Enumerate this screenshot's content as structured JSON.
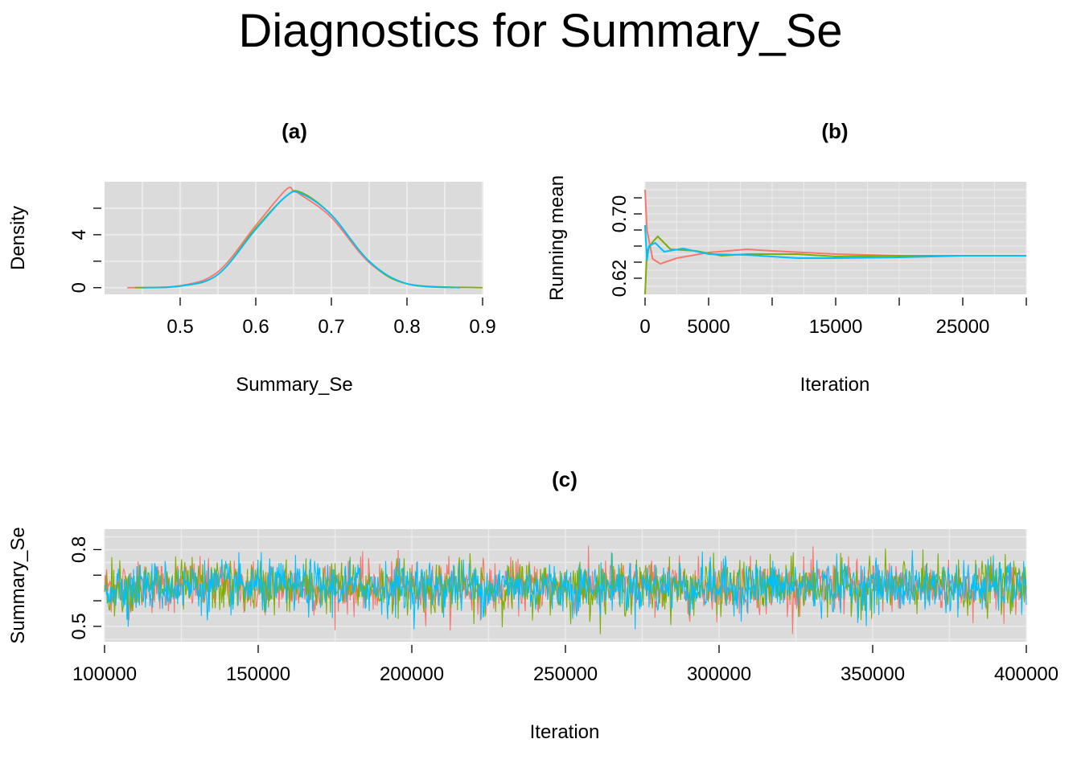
{
  "title": "Diagnostics for Summary_Se",
  "colors": {
    "chain1": "#F8766D",
    "chain2": "#7CAE00",
    "chain3": "#00BFFF",
    "panel_bg": "#DBDBDB",
    "grid": "#EBEBEB"
  },
  "panels": {
    "a": {
      "title": "(a)",
      "xlabel": "Summary_Se",
      "ylabel": "Density",
      "xticks": [
        "0.5",
        "0.6",
        "0.7",
        "0.8",
        "0.9"
      ],
      "yticks": [
        "0",
        "4"
      ]
    },
    "b": {
      "title": "(b)",
      "xlabel": "Iteration",
      "ylabel": "Running mean",
      "xticks": [
        "0",
        "5000",
        "15000",
        "25000"
      ],
      "yticks": [
        "0.62",
        "0.70"
      ]
    },
    "c": {
      "title": "(c)",
      "xlabel": "Iteration",
      "ylabel": "Summary_Se",
      "xticks": [
        "100000",
        "150000",
        "200000",
        "250000",
        "300000",
        "350000",
        "400000"
      ],
      "yticks": [
        "0.5",
        "0.8"
      ]
    }
  },
  "chart_data": [
    {
      "type": "line",
      "panel": "a",
      "title": "(a)",
      "xlabel": "Summary_Se",
      "ylabel": "Density",
      "xlim": [
        0.4,
        0.9
      ],
      "ylim": [
        -0.5,
        8.0
      ],
      "distribution": "approximately normal, mean ≈ 0.655, sd ≈ 0.055, peak density ≈ 7.2",
      "series": [
        {
          "x": [
            0.43,
            0.5,
            0.55,
            0.6,
            0.64,
            0.65,
            0.66,
            0.7,
            0.75,
            0.8,
            0.87
          ],
          "values": [
            0.0,
            0.15,
            1.2,
            4.7,
            7.4,
            7.3,
            7.0,
            5.3,
            1.9,
            0.3,
            0.0
          ]
        },
        {
          "x": [
            0.44,
            0.5,
            0.55,
            0.6,
            0.64,
            0.66,
            0.7,
            0.75,
            0.8,
            0.9
          ],
          "values": [
            0.0,
            0.12,
            1.0,
            4.5,
            6.9,
            7.2,
            5.5,
            2.0,
            0.3,
            0.0
          ]
        },
        {
          "x": [
            0.45,
            0.5,
            0.55,
            0.6,
            0.64,
            0.66,
            0.7,
            0.75,
            0.8,
            0.87
          ],
          "values": [
            0.0,
            0.12,
            1.0,
            4.4,
            6.9,
            7.1,
            5.5,
            2.0,
            0.3,
            0.0
          ]
        }
      ]
    },
    {
      "type": "line",
      "panel": "b",
      "title": "(b)",
      "xlabel": "Iteration",
      "ylabel": "Running mean",
      "xlim": [
        0,
        30000
      ],
      "ylim": [
        0.6,
        0.74
      ],
      "series": [
        {
          "x": [
            0,
            150,
            600,
            1200,
            2500,
            5000,
            8000,
            10000,
            15000,
            20000,
            25000,
            30000
          ],
          "values": [
            0.73,
            0.68,
            0.644,
            0.638,
            0.645,
            0.652,
            0.656,
            0.654,
            0.65,
            0.648,
            0.648,
            0.648
          ]
        },
        {
          "x": [
            0,
            150,
            600,
            1000,
            2000,
            4000,
            6000,
            8000,
            12000,
            15000,
            20000,
            25000,
            30000
          ],
          "values": [
            0.6,
            0.654,
            0.665,
            0.672,
            0.656,
            0.654,
            0.648,
            0.65,
            0.65,
            0.647,
            0.648,
            0.648,
            0.648
          ]
        },
        {
          "x": [
            0,
            150,
            300,
            800,
            1500,
            3000,
            5000,
            8000,
            12000,
            15000,
            20000,
            25000,
            30000
          ],
          "values": [
            0.686,
            0.642,
            0.66,
            0.664,
            0.653,
            0.657,
            0.65,
            0.649,
            0.645,
            0.645,
            0.646,
            0.648,
            0.648
          ]
        }
      ]
    },
    {
      "type": "line",
      "panel": "c",
      "title": "(c)",
      "xlabel": "Iteration",
      "ylabel": "Summary_Se",
      "xlim": [
        100000,
        400000
      ],
      "ylim": [
        0.44,
        0.88
      ],
      "trace": "stationary MCMC trace for 3 chains, centered ≈ 0.655, range ≈ 0.47–0.84"
    }
  ]
}
